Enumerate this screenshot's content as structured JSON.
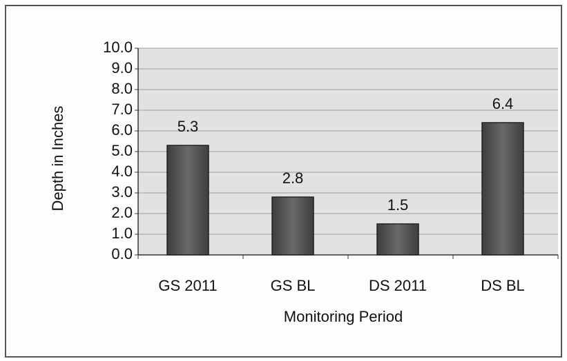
{
  "chart_data": {
    "type": "bar",
    "xlabel": "Monitoring Period",
    "ylabel": "Depth in Inches",
    "categories": [
      "GS 2011",
      "GS BL",
      "DS 2011",
      "DS BL"
    ],
    "values": [
      5.3,
      2.8,
      1.5,
      6.4
    ],
    "color": "#5a5a5a",
    "ylim": [
      0,
      10
    ],
    "yticks": [
      {
        "value": 0,
        "label": "0.0"
      },
      {
        "value": 1,
        "label": "1.0"
      },
      {
        "value": 2,
        "label": "2.0"
      },
      {
        "value": 3,
        "label": "3.0"
      },
      {
        "value": 4,
        "label": "4.0"
      },
      {
        "value": 5,
        "label": "5.0"
      },
      {
        "value": 6,
        "label": "6.0"
      },
      {
        "value": 7,
        "label": "7.0"
      },
      {
        "value": 8,
        "label": "8.0"
      },
      {
        "value": 9,
        "label": "9.0"
      },
      {
        "value": 10,
        "label": "10.0"
      }
    ],
    "grid": true
  }
}
